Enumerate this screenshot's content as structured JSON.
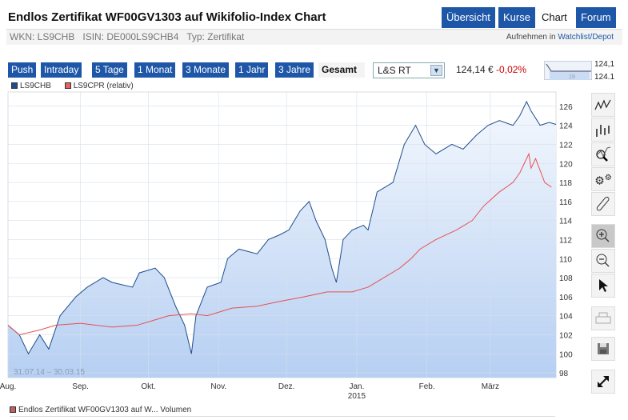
{
  "header": {
    "title": "Endlos Zertifikat WF00GV1303 auf Wikifolio-Index Chart",
    "tabs": [
      {
        "label": "Übersicht"
      },
      {
        "label": "Kurse"
      },
      {
        "label": "Chart"
      },
      {
        "label": "Forum"
      }
    ],
    "info": "WKN: LS9CHB   ISIN: DE000LS9CHB4   Typ: Zertifikat",
    "watch_prefix": "Aufnehmen in ",
    "watch_link": "Watchlist/Depot"
  },
  "ranges": [
    {
      "label": "Push"
    },
    {
      "label": "Intraday"
    },
    {
      "label": "5 Tage"
    },
    {
      "label": "1 Monat"
    },
    {
      "label": "3 Monate"
    },
    {
      "label": "1 Jahr"
    },
    {
      "label": "3 Jahre"
    },
    {
      "label": "Gesamt"
    }
  ],
  "exchange": "L&S RT",
  "price": "124,14 €",
  "change": "-0,02%",
  "mini": {
    "top": "124,1",
    "bottom": "124.1",
    "mid": "19"
  },
  "colors": {
    "blue": "#1e4d8c",
    "red": "#e85050",
    "accent": "#1e57a8"
  },
  "chart_data": {
    "type": "line",
    "title": "Endlos Zertifikat WF00GV1303 auf Wikifolio-Index Chart",
    "ylim": [
      97.5,
      127.5
    ],
    "xlim": [
      0,
      242
    ],
    "yticks": [
      98,
      100,
      102,
      104,
      106,
      108,
      110,
      112,
      114,
      116,
      118,
      120,
      122,
      124,
      126
    ],
    "xticks": [
      {
        "d": 0,
        "label": "Aug."
      },
      {
        "d": 32,
        "label": "Sep."
      },
      {
        "d": 62,
        "label": "Okt."
      },
      {
        "d": 93,
        "label": "Nov."
      },
      {
        "d": 123,
        "label": "Dez."
      },
      {
        "d": 154,
        "label": "Jan.",
        "sub": "2015"
      },
      {
        "d": 185,
        "label": "Feb."
      },
      {
        "d": 213,
        "label": "März"
      }
    ],
    "range_label": "31.07.14 – 30.03.15",
    "series": [
      {
        "name": "LS9CHB",
        "points": [
          [
            0,
            103
          ],
          [
            5,
            102
          ],
          [
            9,
            100
          ],
          [
            14,
            102
          ],
          [
            18,
            100.5
          ],
          [
            23,
            104
          ],
          [
            30,
            106
          ],
          [
            35,
            107
          ],
          [
            42,
            108
          ],
          [
            46,
            107.5
          ],
          [
            55,
            107
          ],
          [
            58,
            108.5
          ],
          [
            65,
            109
          ],
          [
            69,
            108
          ],
          [
            74,
            105
          ],
          [
            78,
            103
          ],
          [
            81,
            100
          ],
          [
            83,
            104
          ],
          [
            88,
            107
          ],
          [
            94,
            107.5
          ],
          [
            97,
            110
          ],
          [
            102,
            111
          ],
          [
            110,
            110.5
          ],
          [
            115,
            112
          ],
          [
            120,
            112.5
          ],
          [
            124,
            113
          ],
          [
            129,
            115
          ],
          [
            133,
            116
          ],
          [
            136,
            114
          ],
          [
            140,
            112
          ],
          [
            143,
            109
          ],
          [
            145,
            107.5
          ],
          [
            148,
            112
          ],
          [
            152,
            113
          ],
          [
            157,
            113.5
          ],
          [
            159,
            113
          ],
          [
            163,
            117
          ],
          [
            170,
            118
          ],
          [
            175,
            122
          ],
          [
            180,
            124
          ],
          [
            184,
            122
          ],
          [
            189,
            121
          ],
          [
            196,
            122
          ],
          [
            201,
            121.5
          ],
          [
            207,
            123
          ],
          [
            212,
            124
          ],
          [
            217,
            124.5
          ],
          [
            223,
            124
          ],
          [
            226,
            125
          ],
          [
            229,
            126.5
          ],
          [
            231,
            125.5
          ],
          [
            235,
            124
          ],
          [
            239,
            124.3
          ],
          [
            242,
            124.1
          ]
        ]
      },
      {
        "name": "LS9CPR (relativ)",
        "points": [
          [
            0,
            103
          ],
          [
            5,
            102
          ],
          [
            14,
            102.5
          ],
          [
            21,
            103
          ],
          [
            32,
            103.2
          ],
          [
            46,
            102.8
          ],
          [
            57,
            103
          ],
          [
            64,
            103.5
          ],
          [
            71,
            104
          ],
          [
            81,
            104.2
          ],
          [
            88,
            104
          ],
          [
            99,
            104.8
          ],
          [
            110,
            105
          ],
          [
            120,
            105.5
          ],
          [
            131,
            106
          ],
          [
            141,
            106.5
          ],
          [
            152,
            106.5
          ],
          [
            159,
            107
          ],
          [
            166,
            108
          ],
          [
            173,
            109
          ],
          [
            178,
            110
          ],
          [
            182,
            111
          ],
          [
            189,
            112
          ],
          [
            198,
            113
          ],
          [
            205,
            114
          ],
          [
            210,
            115.5
          ],
          [
            217,
            117
          ],
          [
            223,
            118
          ],
          [
            226,
            119
          ],
          [
            230,
            121
          ],
          [
            231,
            119.5
          ],
          [
            233,
            120.5
          ],
          [
            237,
            118
          ],
          [
            240,
            117.5
          ]
        ]
      }
    ]
  },
  "volume_legend": "Endlos Zertifikat WF00GV1303 auf W... Volumen"
}
